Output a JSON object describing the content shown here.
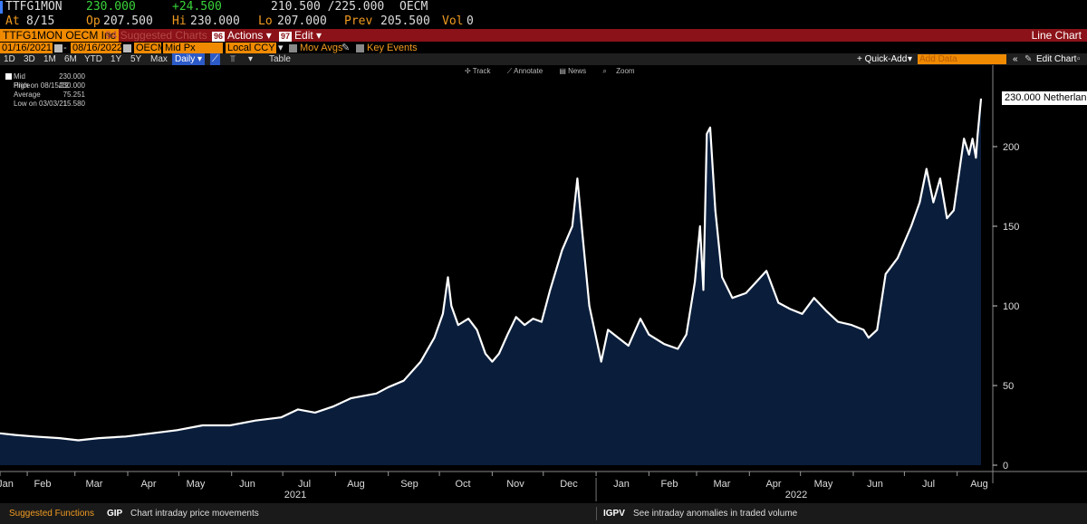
{
  "quote": {
    "ticker": "TTFG1MON",
    "last": "230.000",
    "change": "+24.500",
    "bid_ask": "210.500 /225.000",
    "source": "OECM",
    "at_label": "At",
    "at_value": "8/15",
    "open_label": "Op",
    "open_value": "207.500",
    "high_label": "Hi",
    "high_value": "230.000",
    "low_label": "Lo",
    "low_value": "207.000",
    "prev_label": "Prev",
    "prev_value": "205.500",
    "vol_label": "Vol",
    "vol_value": "0"
  },
  "toolbar": {
    "security": "TTFG1MON OECM Inc",
    "suggested_label": "94 Suggested Charts",
    "actions_num": "96",
    "actions_label": "Actions",
    "edit_num": "97",
    "edit_label": "Edit",
    "chart_type": "Line Chart"
  },
  "settings": {
    "start_date": "01/16/2021",
    "end_date": "08/16/2022",
    "source": "OECM",
    "field": "Mid Px",
    "currency": "Local CCY",
    "mov_avgs": "Mov Avgs",
    "key_events": "Key Events"
  },
  "ranges": [
    "1D",
    "3D",
    "1M",
    "6M",
    "YTD",
    "1Y",
    "5Y",
    "Max"
  ],
  "period": "Daily",
  "table_label": "Table",
  "quick_add": "+ Quick-Add",
  "add_data_placeholder": "Add Data",
  "edit_chart": "Edit Chart",
  "tools": [
    "Track",
    "Annotate",
    "News",
    "Zoom"
  ],
  "legend": {
    "mid_label": "Mid Price",
    "mid_value": "230.000",
    "high_label": "High on 08/15/22",
    "high_value": "230.000",
    "avg_label": "Average",
    "avg_value": "75.251",
    "low_label": "Low on 03/03/21",
    "low_value": "15.580"
  },
  "last_price_label": "230.000 Netherlan",
  "footer": {
    "suggested": "Suggested Functions",
    "f1_code": "GIP",
    "f1_desc": "Chart intraday price movements",
    "f2_code": "IGPV",
    "f2_desc": "See intraday anomalies in traded volume"
  },
  "colors": {
    "line": "#ffffff",
    "area": "#0a1e3c",
    "accent_orange": "#f08a00",
    "toolbar_red": "#8b1218",
    "up_green": "#3ad43a"
  },
  "chart_data": {
    "type": "area",
    "title": "",
    "xlabel": "",
    "ylabel": "",
    "ylim": [
      0,
      230
    ],
    "yticks": [
      0,
      50,
      100,
      150,
      200
    ],
    "month_ticks": [
      "Jan",
      "Feb",
      "Mar",
      "Apr",
      "May",
      "Jun",
      "Jul",
      "Aug",
      "Sep",
      "Oct",
      "Nov",
      "Dec",
      "Jan",
      "Feb",
      "Mar",
      "Apr",
      "May",
      "Jun",
      "Jul",
      "Aug"
    ],
    "year_labels": [
      "2021",
      "2022"
    ],
    "series": [
      {
        "points": [
          [
            "2021-01-16",
            20
          ],
          [
            "2021-01-25",
            19
          ],
          [
            "2021-02-05",
            18
          ],
          [
            "2021-02-20",
            17
          ],
          [
            "2021-03-03",
            15.6
          ],
          [
            "2021-03-15",
            17
          ],
          [
            "2021-03-31",
            18
          ],
          [
            "2021-04-15",
            20
          ],
          [
            "2021-04-30",
            22
          ],
          [
            "2021-05-15",
            25
          ],
          [
            "2021-05-31",
            25
          ],
          [
            "2021-06-15",
            28
          ],
          [
            "2021-06-30",
            30
          ],
          [
            "2021-07-10",
            35
          ],
          [
            "2021-07-20",
            33
          ],
          [
            "2021-07-31",
            37
          ],
          [
            "2021-08-10",
            42
          ],
          [
            "2021-08-25",
            45
          ],
          [
            "2021-09-01",
            49
          ],
          [
            "2021-09-10",
            53
          ],
          [
            "2021-09-20",
            65
          ],
          [
            "2021-09-28",
            80
          ],
          [
            "2021-10-03",
            95
          ],
          [
            "2021-10-06",
            118
          ],
          [
            "2021-10-08",
            100
          ],
          [
            "2021-10-12",
            88
          ],
          [
            "2021-10-18",
            92
          ],
          [
            "2021-10-23",
            85
          ],
          [
            "2021-10-28",
            70
          ],
          [
            "2021-11-01",
            65
          ],
          [
            "2021-11-05",
            70
          ],
          [
            "2021-11-10",
            82
          ],
          [
            "2021-11-15",
            93
          ],
          [
            "2021-11-20",
            88
          ],
          [
            "2021-11-25",
            92
          ],
          [
            "2021-11-30",
            90
          ],
          [
            "2021-12-05",
            110
          ],
          [
            "2021-12-12",
            135
          ],
          [
            "2021-12-18",
            150
          ],
          [
            "2021-12-21",
            180
          ],
          [
            "2021-12-24",
            145
          ],
          [
            "2021-12-28",
            100
          ],
          [
            "2022-01-01",
            80
          ],
          [
            "2022-01-04",
            65
          ],
          [
            "2022-01-08",
            85
          ],
          [
            "2022-01-14",
            80
          ],
          [
            "2022-01-20",
            75
          ],
          [
            "2022-01-27",
            92
          ],
          [
            "2022-02-01",
            82
          ],
          [
            "2022-02-10",
            76
          ],
          [
            "2022-02-18",
            73
          ],
          [
            "2022-02-23",
            82
          ],
          [
            "2022-02-28",
            115
          ],
          [
            "2022-03-03",
            150
          ],
          [
            "2022-03-05",
            110
          ],
          [
            "2022-03-07",
            208
          ],
          [
            "2022-03-09",
            212
          ],
          [
            "2022-03-12",
            160
          ],
          [
            "2022-03-16",
            118
          ],
          [
            "2022-03-22",
            105
          ],
          [
            "2022-03-30",
            108
          ],
          [
            "2022-04-05",
            115
          ],
          [
            "2022-04-11",
            122
          ],
          [
            "2022-04-18",
            102
          ],
          [
            "2022-04-25",
            98
          ],
          [
            "2022-05-02",
            95
          ],
          [
            "2022-05-09",
            105
          ],
          [
            "2022-05-16",
            97
          ],
          [
            "2022-05-23",
            90
          ],
          [
            "2022-05-31",
            88
          ],
          [
            "2022-06-07",
            85
          ],
          [
            "2022-06-10",
            80
          ],
          [
            "2022-06-15",
            85
          ],
          [
            "2022-06-20",
            120
          ],
          [
            "2022-06-27",
            130
          ],
          [
            "2022-07-01",
            140
          ],
          [
            "2022-07-05",
            150
          ],
          [
            "2022-07-10",
            165
          ],
          [
            "2022-07-14",
            186
          ],
          [
            "2022-07-18",
            165
          ],
          [
            "2022-07-22",
            180
          ],
          [
            "2022-07-26",
            155
          ],
          [
            "2022-07-30",
            160
          ],
          [
            "2022-08-03",
            190
          ],
          [
            "2022-08-05",
            205
          ],
          [
            "2022-08-08",
            195
          ],
          [
            "2022-08-10",
            205
          ],
          [
            "2022-08-12",
            193
          ],
          [
            "2022-08-13",
            207
          ],
          [
            "2022-08-15",
            230
          ]
        ]
      }
    ],
    "grid": false,
    "legend_position": "top-left"
  }
}
